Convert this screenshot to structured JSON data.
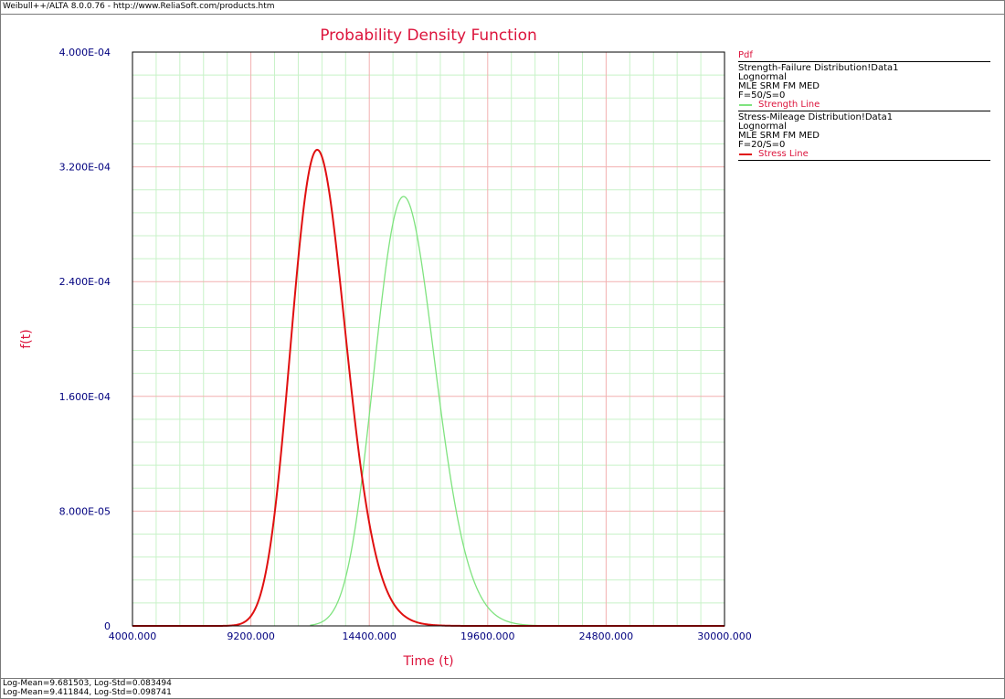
{
  "window": {
    "title": "Weibull++/ALTA 8.0.0.76 - http://www.ReliaSoft.com/products.htm"
  },
  "footer": {
    "lines": [
      "Log-Mean=9.681503, Log-Std=0.083494",
      "Log-Mean=9.411844, Log-Std=0.098741"
    ]
  },
  "legend": {
    "title": "Pdf",
    "blocks": [
      {
        "name": "Strength-Failure Distribution!Data1",
        "distribution": "Lognormal",
        "method": "MLE SRM FM MED",
        "counts": "F=50/S=0",
        "series_label": "Strength Line",
        "color": "#7fe37f"
      },
      {
        "name": "Stress-Mileage Distribution!Data1",
        "distribution": "Lognormal",
        "method": "MLE SRM FM MED",
        "counts": "F=20/S=0",
        "series_label": "Stress Line",
        "color": "#e01010"
      }
    ]
  },
  "colors": {
    "title": "#dc143c",
    "tick_label": "#00007f",
    "major_grid": "#f2b0b0",
    "minor_grid": "#c8f2c8"
  },
  "chart_data": {
    "type": "line",
    "title": "Probability Density Function",
    "xlabel": "Time (t)",
    "ylabel": "f(t)",
    "xlim": [
      4000,
      30000
    ],
    "ylim": [
      0,
      0.0004
    ],
    "x_ticks": [
      {
        "value": 4000,
        "label": "4000.000"
      },
      {
        "value": 9200,
        "label": "9200.000"
      },
      {
        "value": 14400,
        "label": "14400.000"
      },
      {
        "value": 19600,
        "label": "19600.000"
      },
      {
        "value": 24800,
        "label": "24800.000"
      },
      {
        "value": 30000,
        "label": "30000.000"
      }
    ],
    "y_ticks": [
      {
        "value": 0,
        "label": "0"
      },
      {
        "value": 8e-05,
        "label": "8.000E-05"
      },
      {
        "value": 0.00016,
        "label": "1.600E-04"
      },
      {
        "value": 0.00024,
        "label": "2.400E-04"
      },
      {
        "value": 0.00032,
        "label": "3.200E-04"
      },
      {
        "value": 0.0004,
        "label": "4.000E-04"
      }
    ],
    "grid": true,
    "legend_position": "right",
    "series": [
      {
        "name": "Strength Line",
        "distribution": "lognormal",
        "log_mean": 9.681503,
        "log_std": 0.083494,
        "x_range": [
          11800,
          30000
        ],
        "color": "#7fe37f"
      },
      {
        "name": "Stress Line",
        "distribution": "lognormal",
        "log_mean": 9.411844,
        "log_std": 0.098741,
        "x_range": [
          4000,
          30000
        ],
        "color": "#e01010"
      }
    ]
  }
}
